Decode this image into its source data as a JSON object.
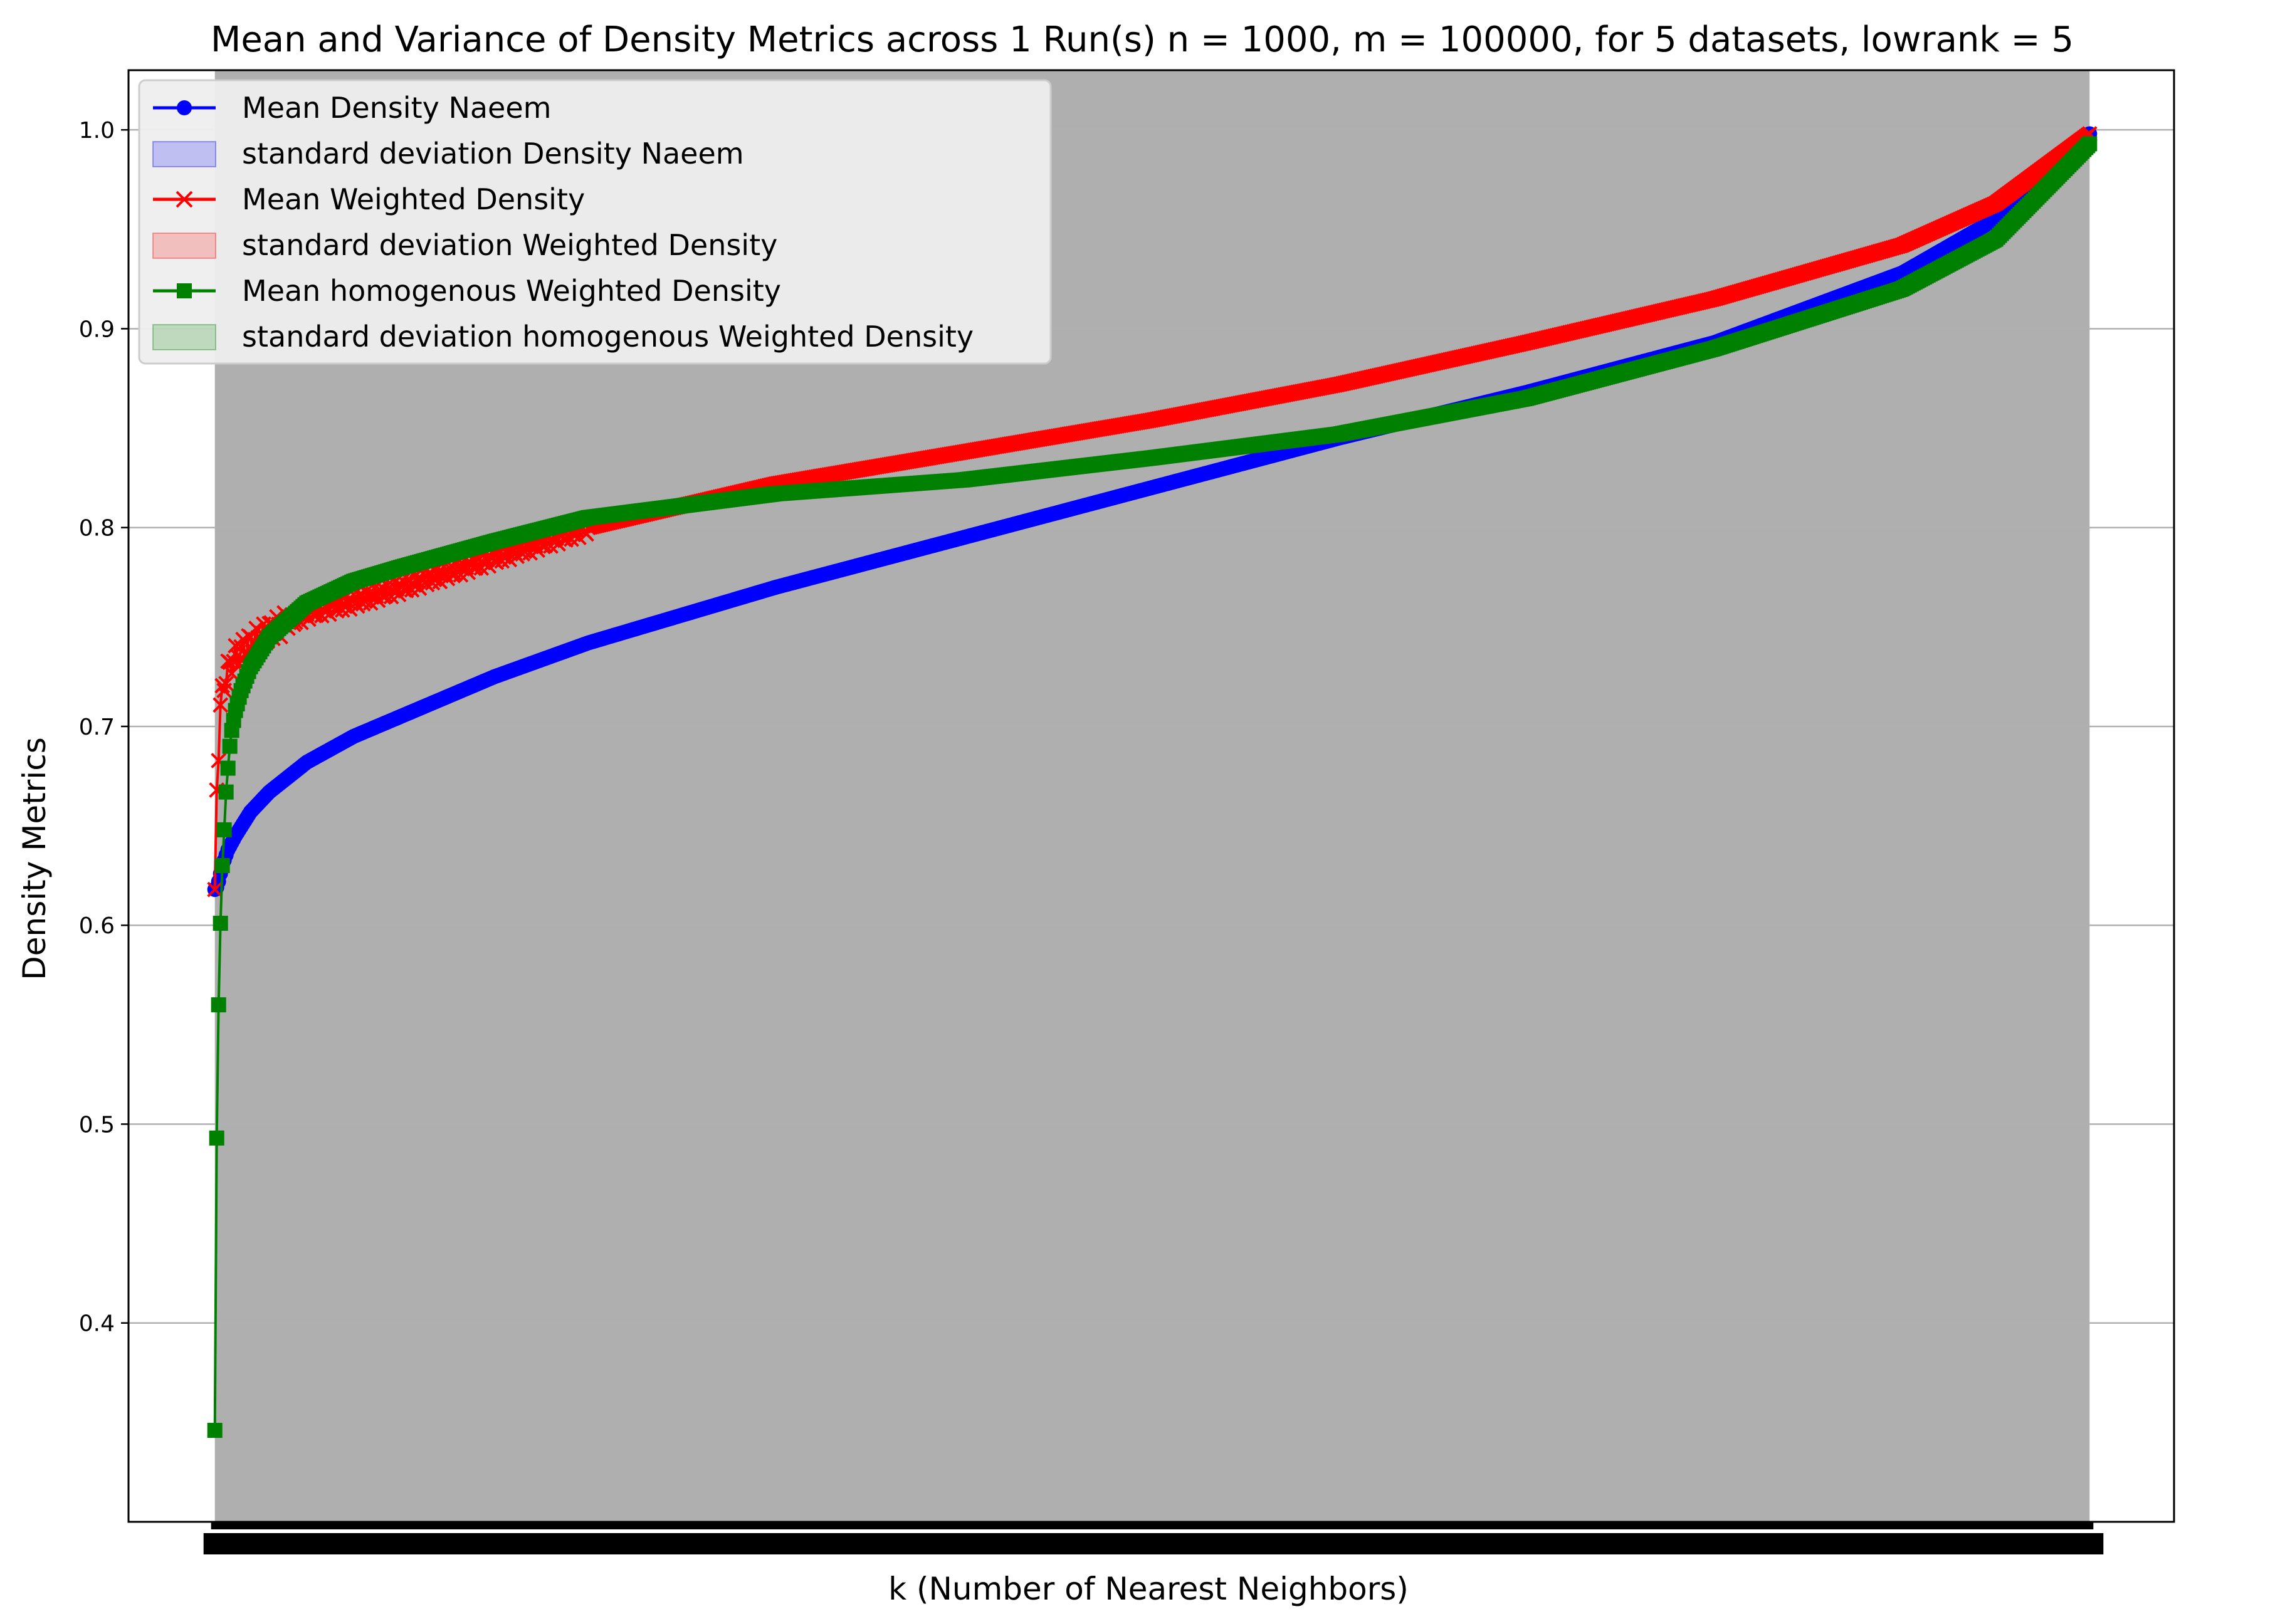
{
  "chart_data": {
    "type": "line",
    "title": "Mean and Variance of Density Metrics across 1 Run(s) n  = 1000, m  = 100000, for 5 datasets, lowrank = 5",
    "xlabel": "k (Number of Nearest Neighbors)",
    "ylabel": "Density Metrics",
    "ylim": [
      0.3,
      1.03
    ],
    "xlim": [
      -45,
      1045
    ],
    "x_range_of_points": [
      1,
      1000
    ],
    "y_ticks": [
      "0.4",
      "0.5",
      "0.6",
      "0.7",
      "0.8",
      "0.9",
      "1.0"
    ],
    "y_tick_values": [
      0.4,
      0.5,
      0.6,
      0.7,
      0.8,
      0.9,
      1.0
    ],
    "x_tick_note": "k = 1 … 1000, one tick per k; labels overlap into a solid band",
    "grid": "y-axis only",
    "legend_position": "upper-left",
    "plot_area_background": "#afafaf",
    "series": [
      {
        "name": "Mean Density Naeem",
        "legend_label": "Mean Density Naeem",
        "band_label": "standard deviation Density Naeem",
        "color": "#0000ff",
        "band_color": "#0000ff",
        "marker": "circle",
        "anchors_x": [
          1,
          2,
          3,
          5,
          8,
          12,
          20,
          30,
          50,
          75,
          100,
          150,
          200,
          300,
          400,
          500,
          600,
          700,
          800,
          900,
          950,
          1000
        ],
        "anchors_y": [
          0.618,
          0.619,
          0.622,
          0.63,
          0.638,
          0.645,
          0.657,
          0.667,
          0.682,
          0.695,
          0.705,
          0.725,
          0.742,
          0.77,
          0.795,
          0.82,
          0.845,
          0.868,
          0.893,
          0.928,
          0.955,
          0.998
        ]
      },
      {
        "name": "Mean Weighted Density",
        "legend_label": "Mean Weighted Density",
        "band_label": "standard deviation Weighted Density",
        "color": "#ff0000",
        "band_color": "#ff0000",
        "marker": "x",
        "anchors_x": [
          1,
          2,
          3,
          4,
          5,
          6,
          8,
          10,
          12,
          15,
          20,
          30,
          50,
          75,
          100,
          150,
          200,
          300,
          400,
          500,
          600,
          700,
          800,
          900,
          950,
          1000
        ],
        "anchors_y": [
          0.618,
          0.668,
          0.688,
          0.708,
          0.716,
          0.722,
          0.728,
          0.732,
          0.735,
          0.738,
          0.742,
          0.748,
          0.757,
          0.763,
          0.77,
          0.785,
          0.8,
          0.822,
          0.838,
          0.854,
          0.872,
          0.893,
          0.915,
          0.942,
          0.963,
          0.998
        ]
      },
      {
        "name": "Mean homogenous Weighted Density",
        "legend_label": "Mean homogenous Weighted Density",
        "band_label": "standard deviation homogenous Weighted Density",
        "color": "#008000",
        "band_color": "#008000",
        "marker": "square",
        "anchors_x": [
          1,
          2,
          3,
          4,
          5,
          6,
          7,
          8,
          9,
          10,
          12,
          15,
          20,
          30,
          50,
          75,
          100,
          150,
          200,
          300,
          400,
          500,
          600,
          700,
          800,
          900,
          950,
          1000
        ],
        "anchors_y": [
          0.346,
          0.493,
          0.56,
          0.601,
          0.63,
          0.648,
          0.667,
          0.679,
          0.69,
          0.698,
          0.708,
          0.718,
          0.73,
          0.745,
          0.762,
          0.773,
          0.78,
          0.793,
          0.805,
          0.817,
          0.824,
          0.835,
          0.847,
          0.865,
          0.89,
          0.92,
          0.945,
          0.993
        ]
      }
    ]
  }
}
